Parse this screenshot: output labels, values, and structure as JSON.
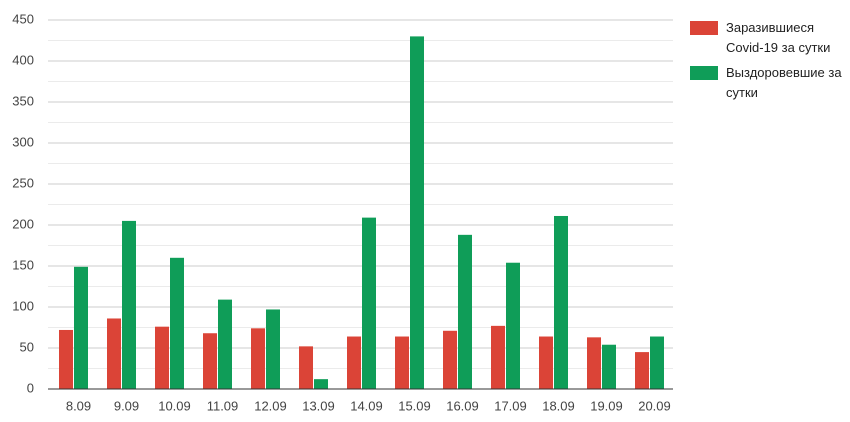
{
  "chart_data": {
    "type": "bar",
    "categories": [
      "8.09",
      "9.09",
      "10.09",
      "11.09",
      "12.09",
      "13.09",
      "14.09",
      "15.09",
      "16.09",
      "17.09",
      "18.09",
      "19.09",
      "20.09"
    ],
    "series": [
      {
        "name": "Заразившиеся Covid-19 за сутки",
        "color": "#db4437",
        "values": [
          72,
          86,
          76,
          68,
          74,
          52,
          64,
          64,
          71,
          77,
          64,
          63,
          45
        ]
      },
      {
        "name": "Выздоровевшие за сутки",
        "color": "#0f9d58",
        "values": [
          149,
          205,
          160,
          109,
          97,
          12,
          209,
          430,
          188,
          154,
          211,
          54,
          64
        ]
      }
    ],
    "ylim": [
      0,
      450
    ],
    "yticks": [
      0,
      50,
      100,
      150,
      200,
      250,
      300,
      350,
      400,
      450
    ],
    "grid": true,
    "legend": "right"
  }
}
